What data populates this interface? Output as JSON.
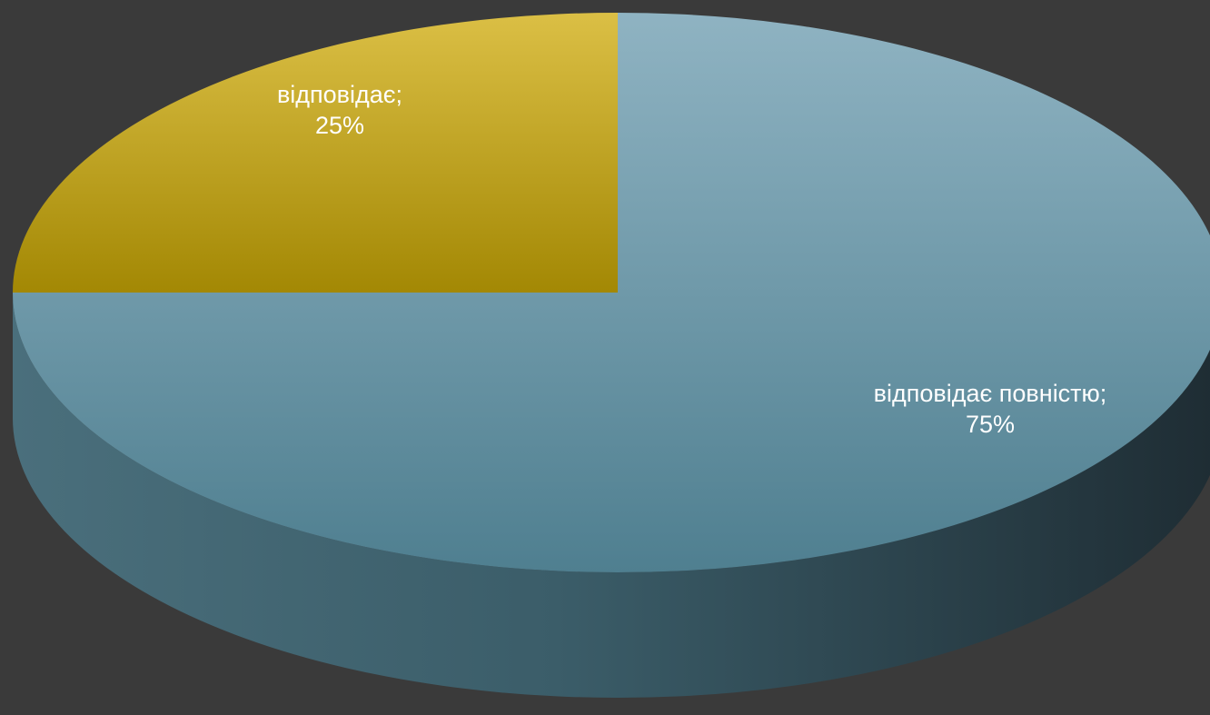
{
  "chart_data": {
    "type": "pie",
    "style": "3d",
    "slices": [
      {
        "label": "відповідає",
        "value": 25,
        "value_label": "25%",
        "color": "#c4a42a"
      },
      {
        "label": "відповідає повністю",
        "value": 75,
        "value_label": "75%",
        "color": "#6f9aa8"
      }
    ],
    "legend": "none",
    "background_color": "#3a3a3a",
    "label_color": "#ffffff"
  }
}
